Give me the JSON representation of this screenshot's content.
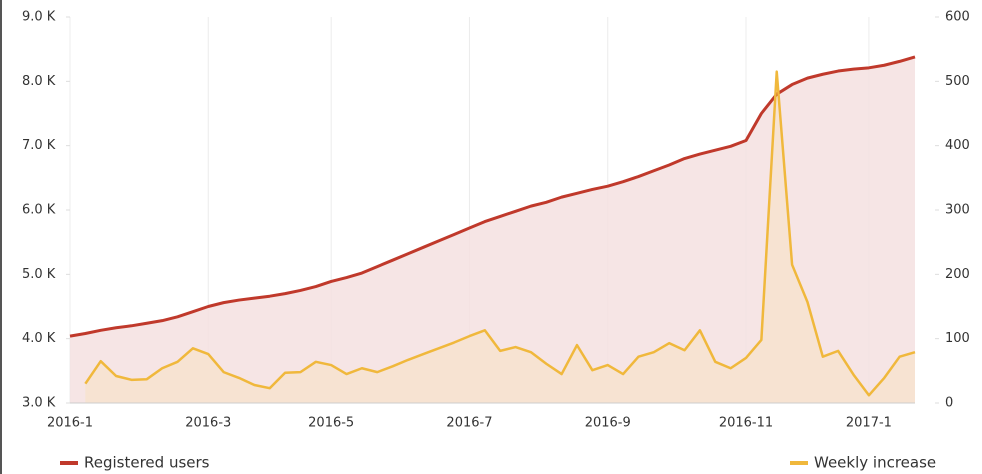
{
  "chart_data": {
    "type": "line",
    "categories": [
      "2016-1",
      null,
      null,
      null,
      null,
      null,
      null,
      null,
      null,
      "2016-3",
      null,
      null,
      null,
      null,
      null,
      null,
      null,
      "2016-5",
      null,
      null,
      null,
      null,
      null,
      null,
      null,
      null,
      "2016-7",
      null,
      null,
      null,
      null,
      null,
      null,
      null,
      null,
      "2016-9",
      null,
      null,
      null,
      null,
      null,
      null,
      null,
      null,
      "2016-11",
      null,
      null,
      null,
      null,
      null,
      null,
      null,
      "2017-1",
      null,
      null,
      null
    ],
    "series": [
      {
        "name": "Registered users",
        "color": "#c0392b",
        "fill": "#f5e1e1",
        "values": [
          4040,
          4080,
          4130,
          4170,
          4200,
          4240,
          4280,
          4340,
          4420,
          4500,
          4560,
          4600,
          4630,
          4660,
          4700,
          4750,
          4810,
          4890,
          4950,
          5020,
          5120,
          5220,
          5320,
          5420,
          5520,
          5620,
          5720,
          5820,
          5900,
          5980,
          6060,
          6120,
          6200,
          6260,
          6320,
          6370,
          6440,
          6520,
          6610,
          6700,
          6800,
          6870,
          6930,
          6990,
          7080,
          7500,
          7800,
          7950,
          8050,
          8110,
          8160,
          8190,
          8210,
          8250,
          8310,
          8380
        ]
      },
      {
        "name": "Weekly increase",
        "color": "#f0b83c",
        "fill": "#f7e3cf",
        "axis": "y2",
        "values": [
          null,
          30,
          65,
          42,
          36,
          37,
          54,
          64,
          85,
          76,
          48,
          39,
          28,
          23,
          47,
          48,
          64,
          59,
          45,
          54,
          48,
          57,
          67,
          76,
          85,
          94,
          104,
          113,
          81,
          87,
          79,
          61,
          45,
          90,
          51,
          59,
          45,
          72,
          79,
          93,
          82,
          113,
          64,
          54,
          70,
          98,
          515,
          215,
          157,
          72,
          81,
          44,
          12,
          39,
          72,
          79
        ]
      }
    ],
    "ylim": [
      3000,
      9000
    ],
    "yticks": [
      {
        "value": 3000,
        "label": "3.0 K"
      },
      {
        "value": 4000,
        "label": "4.0 K"
      },
      {
        "value": 5000,
        "label": "5.0 K"
      },
      {
        "value": 6000,
        "label": "6.0 K"
      },
      {
        "value": 7000,
        "label": "7.0 K"
      },
      {
        "value": 8000,
        "label": "8.0 K"
      },
      {
        "value": 9000,
        "label": "9.0 K"
      }
    ],
    "y2lim": [
      0,
      600
    ],
    "y2ticks": [
      0,
      100,
      200,
      300,
      400,
      500,
      600
    ],
    "grid": true
  }
}
